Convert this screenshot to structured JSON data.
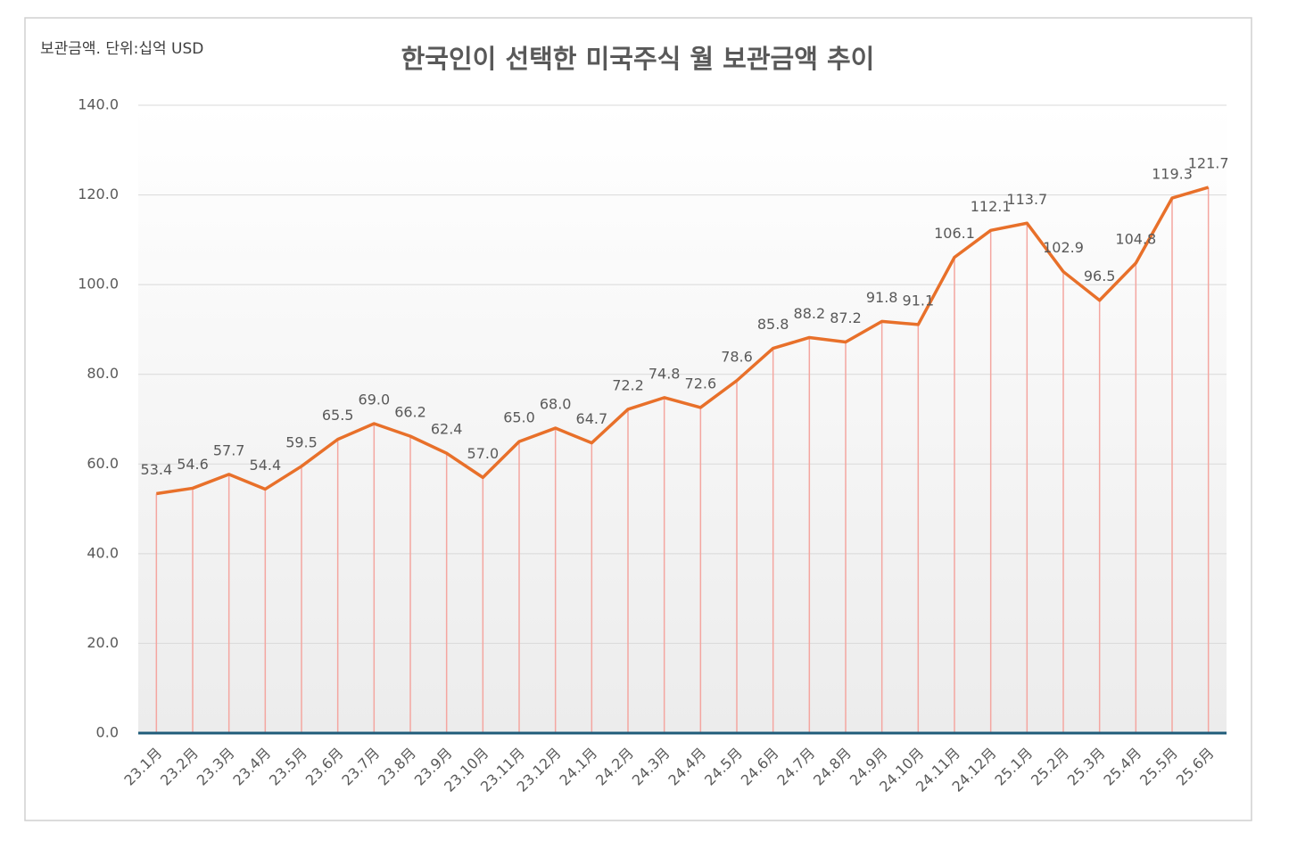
{
  "chart_data": {
    "type": "line",
    "title": "한국인이 선택한 미국주식 월 보관금액 추이",
    "annotation": "보관금액. 단위:십억 USD",
    "categories": [
      "23.1月",
      "23.2月",
      "23.3月",
      "23.4月",
      "23.5月",
      "23.6月",
      "23.7月",
      "23.8月",
      "23.9月",
      "23.10月",
      "23.11月",
      "23.12月",
      "24.1月",
      "24.2月",
      "24.3月",
      "24.4月",
      "24.5月",
      "24.6月",
      "24.7月",
      "24.8月",
      "24.9月",
      "24.10月",
      "24.11月",
      "24.12月",
      "25.1月",
      "25.2月",
      "25.3月",
      "25.4月",
      "25.5月",
      "25.6月"
    ],
    "values": [
      53.4,
      54.6,
      57.7,
      54.4,
      59.5,
      65.5,
      69.0,
      66.2,
      62.4,
      57.0,
      65.0,
      68.0,
      64.7,
      72.2,
      74.8,
      72.6,
      78.6,
      85.8,
      88.2,
      87.2,
      91.8,
      91.1,
      106.1,
      112.1,
      113.7,
      102.9,
      96.5,
      104.8,
      119.3,
      121.7
    ],
    "value_labels": [
      "53.4",
      "54.6",
      "57.7",
      "54.4",
      "59.5",
      "65.5",
      "69.0",
      "66.2",
      "62.4",
      "57.0",
      "65.0",
      "68.0",
      "64.7",
      "72.2",
      "74.8",
      "72.6",
      "78.6",
      "85.8",
      "88.2",
      "87.2",
      "91.8",
      "91.1",
      "106.1",
      "112.1",
      "113.7",
      "102.9",
      "96.5",
      "104.8",
      "119.3",
      "121.7"
    ],
    "color": "#e8702a",
    "drop_line_color": "#f4a6a0",
    "ylim": [
      0,
      140
    ],
    "yticks": [
      {
        "value": 0,
        "label": "0.0"
      },
      {
        "value": 20,
        "label": "20.0"
      },
      {
        "value": 40,
        "label": "40.0"
      },
      {
        "value": 60,
        "label": "60.0"
      },
      {
        "value": 80,
        "label": "80.0"
      },
      {
        "value": 100,
        "label": "100.0"
      },
      {
        "value": 120,
        "label": "120.0"
      },
      {
        "value": 140,
        "label": "140.0"
      }
    ],
    "grid": true
  }
}
